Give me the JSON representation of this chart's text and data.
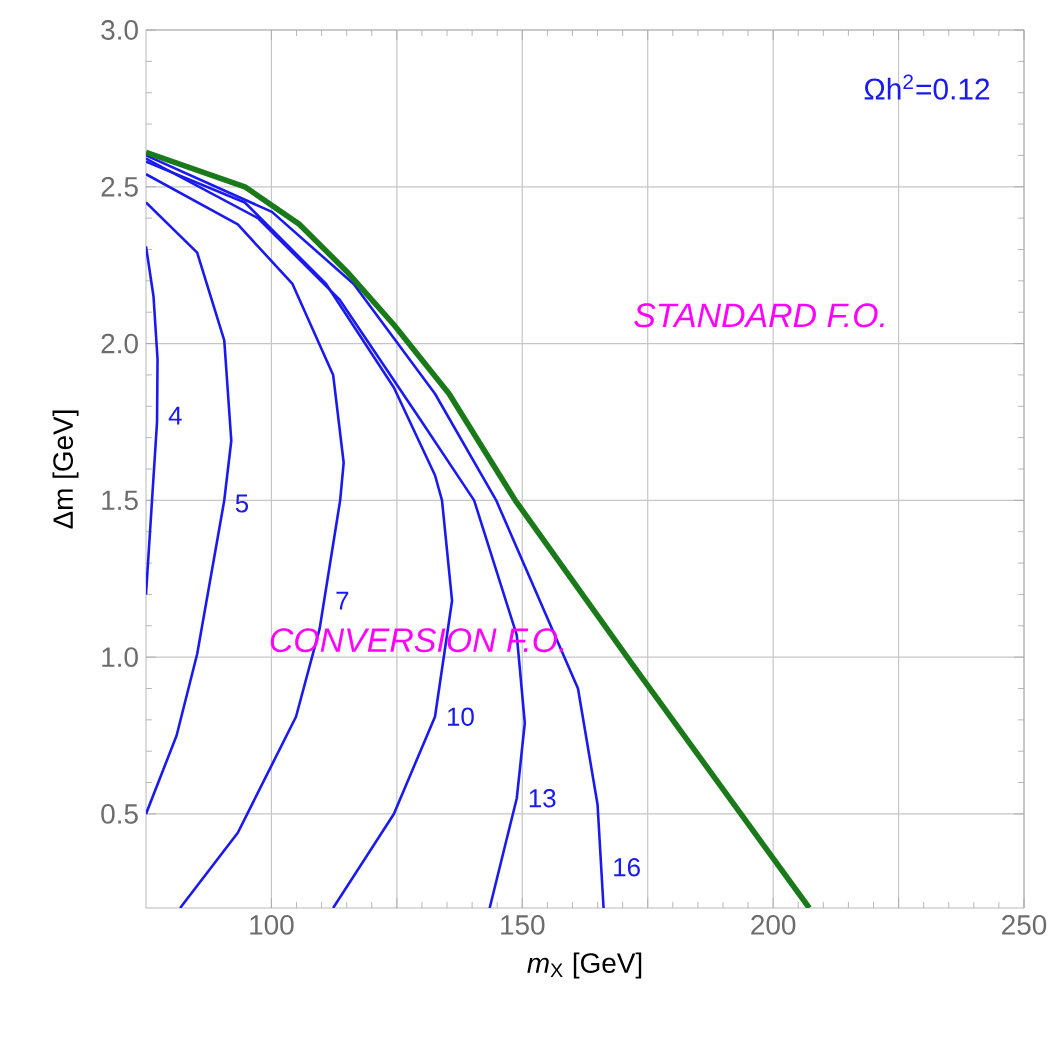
{
  "chart_data": {
    "type": "line",
    "xlabel": "*m*$_{X}$ [GeV]",
    "ylabel": "Δm [GeV]",
    "xlim": [
      75,
      250
    ],
    "ylim": [
      0.2,
      3.0
    ],
    "xticks": [
      100,
      {
        "value": 125,
        "label": null
      },
      150,
      {
        "value": 175,
        "label": null
      },
      200,
      {
        "value": 225,
        "label": null
      },
      250
    ],
    "yticks": [
      {
        "value": 0.5,
        "label": "0.5"
      },
      {
        "value": 1,
        "label": "1.0"
      },
      {
        "value": 1.5,
        "label": "1.5"
      },
      {
        "value": 2,
        "label": "2.0"
      },
      {
        "value": 2.5,
        "label": "2.5"
      },
      {
        "value": 3,
        "label": "3.0"
      }
    ],
    "grid": true,
    "annotations": [
      "Ωh$^{2}$=0.12",
      "STANDARD F.O.",
      "CONVERSION F.O."
    ],
    "series": [
      {
        "name": "4",
        "color": "#1a1aee",
        "x": [
          75,
          76.5,
          77.3,
          77.2,
          76.4,
          75.6,
          75
        ],
        "values": [
          2.31,
          2.15,
          1.95,
          1.75,
          1.55,
          1.35,
          1.2
        ]
      },
      {
        "name": "5",
        "color": "#1a1aee",
        "x": [
          75,
          85.2,
          90.6,
          92,
          90.6,
          85.2,
          81.1,
          75
        ],
        "values": [
          2.45,
          2.29,
          2.01,
          1.69,
          1.5,
          1.01,
          0.75,
          0.5
        ]
      },
      {
        "name": "7",
        "color": "#1a1aee",
        "x": [
          75,
          93.3,
          104.2,
          112.3,
          114.4,
          113.7,
          109.6,
          104.9,
          93.3,
          81.8
        ],
        "values": [
          2.54,
          2.38,
          2.19,
          1.9,
          1.62,
          1.5,
          1.09,
          0.81,
          0.44,
          0.2
        ]
      },
      {
        "name": "10",
        "color": "#1a1aee",
        "x": [
          75,
          94.7,
          110.9,
          124.4,
          132.6,
          134,
          136,
          132.6,
          124.4,
          112.3
        ],
        "values": [
          2.58,
          2.45,
          2.19,
          1.86,
          1.58,
          1.5,
          1.18,
          0.81,
          0.5,
          0.2
        ]
      },
      {
        "name": "13",
        "color": "#1a1aee",
        "x": [
          75,
          97.3,
          113.6,
          130,
          140.4,
          148.9,
          150.5,
          148.9,
          143.5
        ],
        "values": [
          2.59,
          2.4,
          2.14,
          1.75,
          1.5,
          1.07,
          0.79,
          0.55,
          0.2
        ]
      },
      {
        "name": "16",
        "color": "#1a1aee",
        "x": [
          75,
          100.1,
          116.4,
          132.6,
          144.8,
          161.1,
          165,
          166.2
        ],
        "values": [
          2.6,
          2.42,
          2.19,
          1.84,
          1.5,
          0.9,
          0.53,
          0.2
        ]
      },
      {
        "color": "#1a7a1a",
        "x": [
          75,
          94.7,
          105.6,
          115,
          124.4,
          135.4,
          148.6,
          171.8,
          207.2
        ],
        "values": [
          2.61,
          2.5,
          2.38,
          2.23,
          2.06,
          1.84,
          1.5,
          0.98,
          0.2
        ]
      }
    ]
  }
}
